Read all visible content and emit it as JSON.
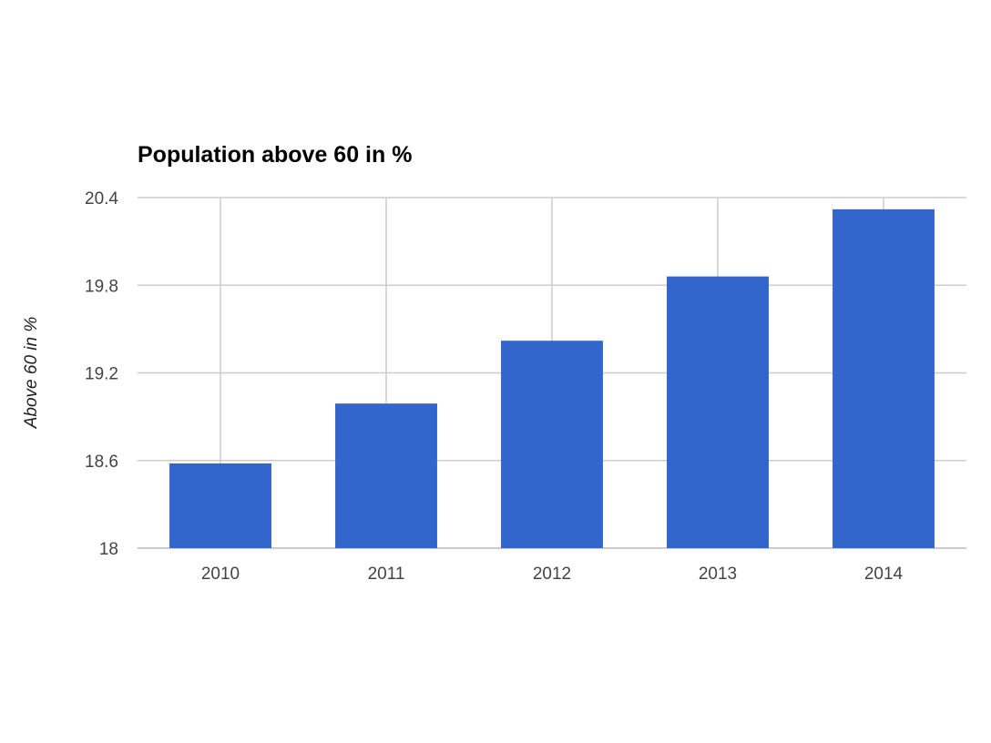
{
  "chart_data": {
    "type": "bar",
    "title": "Population above 60 in %",
    "xlabel": "",
    "ylabel": "Above 60 in %",
    "categories": [
      "2010",
      "2011",
      "2012",
      "2013",
      "2014"
    ],
    "values": [
      18.58,
      18.99,
      19.42,
      19.86,
      20.32
    ],
    "ylim": [
      18,
      20.4
    ],
    "yticks": [
      "20.4",
      "19.8",
      "19.2",
      "18.6",
      "18"
    ],
    "bar_color": "#3366cc",
    "grid": true,
    "legend": "none"
  }
}
